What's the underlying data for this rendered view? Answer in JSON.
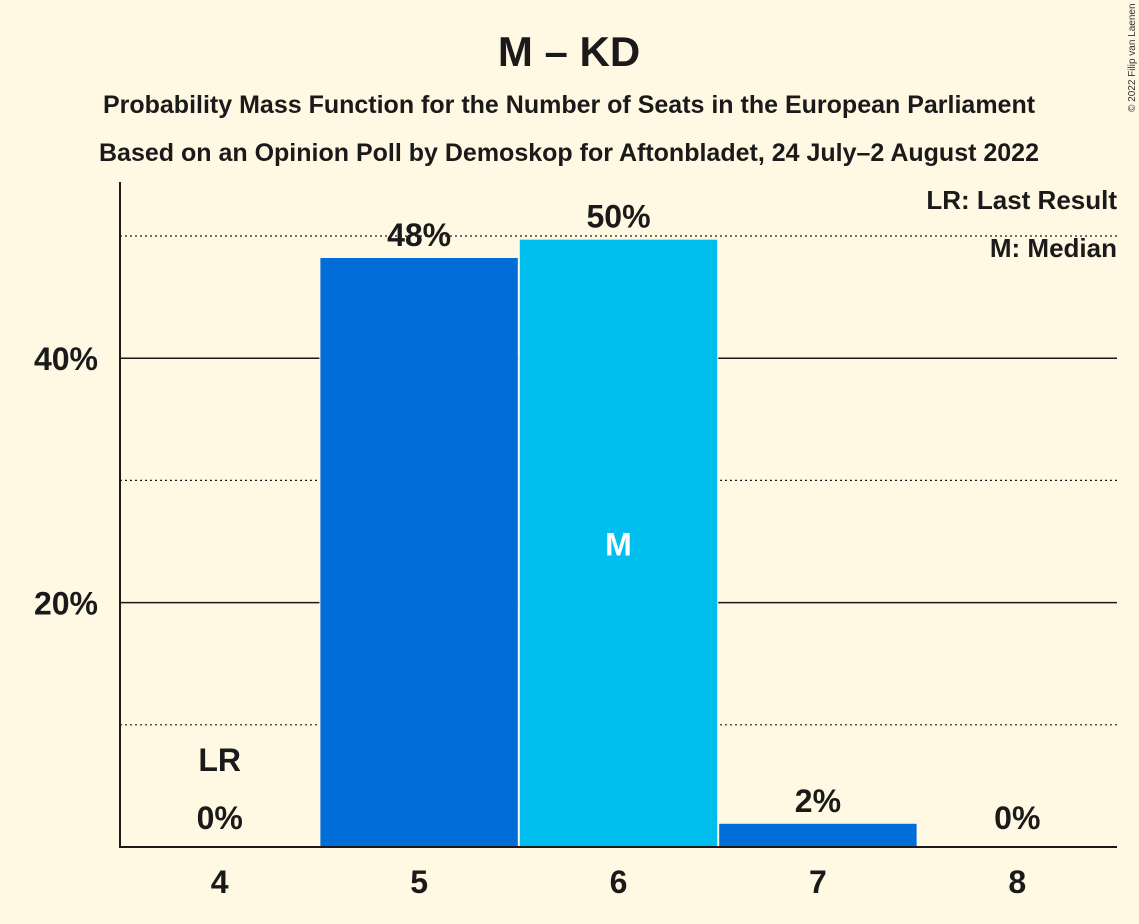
{
  "chart_data": {
    "type": "bar",
    "title": "M – KD",
    "subtitle_1": "Probability Mass Function for the Number of Seats in the European Parliament",
    "subtitle_2": "Based on an Opinion Poll by Demoskop for Aftonbladet, 24 July–2 August 2022",
    "categories": [
      "4",
      "5",
      "6",
      "7",
      "8"
    ],
    "values": [
      0,
      48.2,
      49.7,
      1.9,
      0
    ],
    "value_labels": [
      "0%",
      "48%",
      "50%",
      "2%",
      "0%"
    ],
    "ylim": [
      0,
      54
    ],
    "y_ticks": [
      {
        "value": 20,
        "label": "20%"
      },
      {
        "value": 40,
        "label": "40%"
      }
    ],
    "y_minor_gridlines": [
      10,
      30,
      50
    ],
    "last_result_category": "4",
    "last_result_marker": "LR",
    "median_category": "6",
    "median_marker": "M",
    "legend": [
      "LR: Last Result",
      "M: Median"
    ],
    "legend_position": "top-right",
    "copyright": "© 2022 Filip van Laenen",
    "colors": {
      "bar": "#006dd9",
      "median_bar": "#00bfef",
      "background": "#fff8e3",
      "text": "#1a1a1a"
    }
  }
}
